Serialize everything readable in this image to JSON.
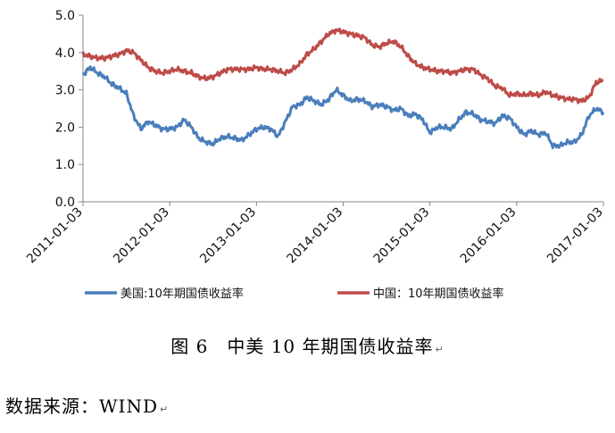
{
  "figure": {
    "caption": "图 6　中美 10 年期国债收益率",
    "source": "数据来源：WIND",
    "para_mark": "↵"
  },
  "chart_data": {
    "type": "line",
    "title": "",
    "xlabel": "",
    "ylabel": "",
    "ylim": [
      0,
      5
    ],
    "yticks": [
      "0.0",
      "1.0",
      "2.0",
      "3.0",
      "4.0",
      "5.0"
    ],
    "xticks": [
      "2011-01-03",
      "2012-01-03",
      "2013-01-03",
      "2014-01-03",
      "2015-01-03",
      "2016-01-03",
      "2017-01-03"
    ],
    "grid": false,
    "legend": "bottom",
    "x": [
      "2011-01",
      "2011-02",
      "2011-03",
      "2011-04",
      "2011-05",
      "2011-06",
      "2011-07",
      "2011-08",
      "2011-09",
      "2011-10",
      "2011-11",
      "2011-12",
      "2012-01",
      "2012-02",
      "2012-03",
      "2012-04",
      "2012-05",
      "2012-06",
      "2012-07",
      "2012-08",
      "2012-09",
      "2012-10",
      "2012-11",
      "2012-12",
      "2013-01",
      "2013-02",
      "2013-03",
      "2013-04",
      "2013-05",
      "2013-06",
      "2013-07",
      "2013-08",
      "2013-09",
      "2013-10",
      "2013-11",
      "2013-12",
      "2014-01",
      "2014-02",
      "2014-03",
      "2014-04",
      "2014-05",
      "2014-06",
      "2014-07",
      "2014-08",
      "2014-09",
      "2014-10",
      "2014-11",
      "2014-12",
      "2015-01",
      "2015-02",
      "2015-03",
      "2015-04",
      "2015-05",
      "2015-06",
      "2015-07",
      "2015-08",
      "2015-09",
      "2015-10",
      "2015-11",
      "2015-12",
      "2016-01",
      "2016-02",
      "2016-03",
      "2016-04",
      "2016-05",
      "2016-06",
      "2016-07",
      "2016-08",
      "2016-09",
      "2016-10",
      "2016-11",
      "2016-12",
      "2017-01"
    ],
    "series": [
      {
        "name": "美国:10年期国债收益率",
        "color": "#4a7ebb",
        "values": [
          3.4,
          3.6,
          3.45,
          3.35,
          3.15,
          3.05,
          2.9,
          2.3,
          1.95,
          2.15,
          2.05,
          1.95,
          1.95,
          2.0,
          2.2,
          2.0,
          1.7,
          1.6,
          1.55,
          1.7,
          1.75,
          1.7,
          1.65,
          1.8,
          1.95,
          2.0,
          1.95,
          1.75,
          2.15,
          2.55,
          2.6,
          2.8,
          2.7,
          2.6,
          2.75,
          3.0,
          2.85,
          2.7,
          2.75,
          2.7,
          2.55,
          2.6,
          2.55,
          2.45,
          2.5,
          2.3,
          2.35,
          2.2,
          1.85,
          2.0,
          2.0,
          1.95,
          2.2,
          2.4,
          2.35,
          2.2,
          2.15,
          2.1,
          2.3,
          2.25,
          2.0,
          1.8,
          1.9,
          1.8,
          1.85,
          1.5,
          1.5,
          1.6,
          1.6,
          1.8,
          2.3,
          2.5,
          2.4
        ]
      },
      {
        "name": "中国：10年期国债收益率",
        "color": "#be4b48",
        "values": [
          3.95,
          3.9,
          3.85,
          3.85,
          3.9,
          3.95,
          4.05,
          4.0,
          3.8,
          3.6,
          3.5,
          3.45,
          3.5,
          3.55,
          3.5,
          3.45,
          3.35,
          3.3,
          3.35,
          3.45,
          3.55,
          3.55,
          3.55,
          3.55,
          3.6,
          3.55,
          3.55,
          3.5,
          3.45,
          3.55,
          3.7,
          3.95,
          4.1,
          4.3,
          4.5,
          4.6,
          4.55,
          4.5,
          4.45,
          4.4,
          4.2,
          4.15,
          4.25,
          4.3,
          4.15,
          3.9,
          3.7,
          3.6,
          3.55,
          3.5,
          3.5,
          3.45,
          3.5,
          3.55,
          3.55,
          3.4,
          3.3,
          3.1,
          3.05,
          2.85,
          2.9,
          2.85,
          2.9,
          2.85,
          2.95,
          2.85,
          2.8,
          2.75,
          2.75,
          2.7,
          2.8,
          3.2,
          3.25
        ]
      }
    ]
  }
}
